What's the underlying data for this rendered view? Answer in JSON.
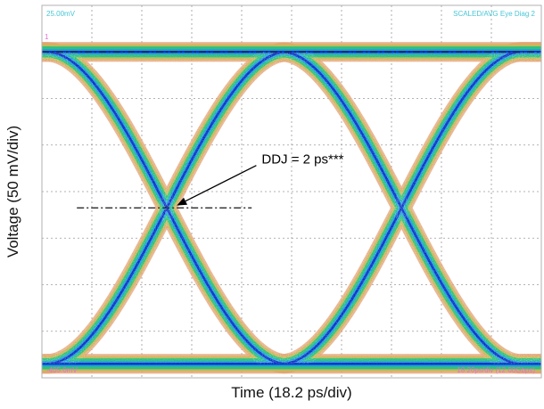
{
  "chart_data": {
    "type": "line",
    "title": "",
    "xlabel": "Time (18.2 ps/div)",
    "ylabel": "Voltage (50 mV/div)",
    "grid": true,
    "grid_divisions": {
      "x": 10,
      "y": 8
    },
    "xlim": [
      0,
      10
    ],
    "ylim": [
      0,
      8
    ],
    "colors": {
      "core": "#0b2fc8",
      "inner": "#1fa3d6",
      "mid": "#2cc37a",
      "outer": "#c9b65a",
      "fringe": "#e2a06f",
      "grid": "#9a9a9a",
      "ref_line": "#2a2a2a",
      "scope_text": "#47c6d6",
      "scope_text_pink": "#e070d0"
    },
    "levels": {
      "high": 7.0,
      "low": 0.3
    },
    "crossings": [
      2.5,
      7.2
    ],
    "eye_paths": [
      {
        "name": "",
        "points": [
          [
            0,
            7.0
          ],
          [
            2.5,
            3.65
          ],
          [
            7.2,
            3.65
          ],
          [
            10,
            7.0
          ]
        ]
      },
      {
        "name": "",
        "points": [
          [
            0,
            0.3
          ],
          [
            2.5,
            3.65
          ],
          [
            7.2,
            3.65
          ],
          [
            10,
            0.3
          ]
        ]
      }
    ],
    "reference_lines": [
      {
        "orientation": "horizontal",
        "y": 7.0,
        "x_from": 0,
        "x_to": 10
      },
      {
        "orientation": "horizontal",
        "y": 3.65,
        "x_from": 0.7,
        "x_to": 4.2
      }
    ],
    "annotations": [
      {
        "text": "DDJ = 2 ps***",
        "x": 4.4,
        "y": 4.6,
        "arrow_to": [
          2.7,
          3.7
        ]
      }
    ],
    "scope_labels": {
      "top_left": "25.00mV",
      "top_right": "SCALED/AVG Eye Diag 2",
      "marker": "1",
      "bottom_left": "-405.0mV",
      "bottom_right": "18.20ps/div (12.00Gbps)"
    }
  }
}
